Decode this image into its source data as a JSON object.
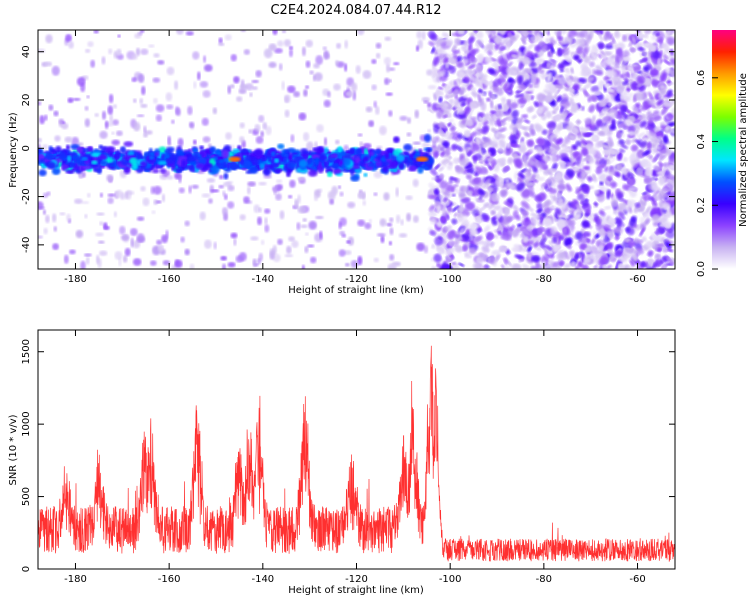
{
  "title": "C2E4.2024.084.07.44.R12",
  "chart_data": [
    {
      "type": "heatmap",
      "xlabel": "Height of straight line (km)",
      "ylabel": "Frequency (Hz)",
      "xlim": [
        -188,
        -52
      ],
      "ylim": [
        -50,
        49
      ],
      "x_ticks": [
        -180,
        -160,
        -140,
        -120,
        -100,
        -80,
        -60
      ],
      "x_tick_labels": [
        "-180",
        "-160",
        "-140",
        "-120",
        "-100",
        "-80",
        "-60"
      ],
      "y_ticks": [
        40,
        20,
        0,
        -20,
        -40
      ],
      "y_tick_labels": [
        "40",
        "20",
        "0",
        "-20",
        "-40"
      ],
      "signal_band": {
        "x_range": [
          -188,
          -104
        ],
        "frequency_center": -5,
        "frequency_width": 8,
        "peak_x": [
          -146,
          -106
        ]
      },
      "noise_region_x": [
        -104,
        -52
      ],
      "colorbar": {
        "label": "Normalized spectral amplitude",
        "range": [
          0,
          0.75
        ],
        "ticks": [
          0.0,
          0.2,
          0.4,
          0.6
        ],
        "tick_labels": [
          "0.0",
          "0.2",
          "0.4",
          "0.6"
        ],
        "colors": [
          "#ffffff",
          "#c8b2f2",
          "#8c42ff",
          "#3800ff",
          "#0050ff",
          "#00e6ff",
          "#00ff88",
          "#7cff00",
          "#ffff00",
          "#ff9a00",
          "#ff2000",
          "#ff0080"
        ]
      },
      "grid": false
    },
    {
      "type": "line",
      "xlabel": "Height of straight line (km)",
      "ylabel": "SNR (10 * v/v)",
      "xlim": [
        -188,
        -52
      ],
      "ylim": [
        0,
        1650
      ],
      "x_ticks": [
        -180,
        -160,
        -140,
        -120,
        -100,
        -80,
        -60
      ],
      "x_tick_labels": [
        "-180",
        "-160",
        "-140",
        "-120",
        "-100",
        "-80",
        "-60"
      ],
      "y_ticks": [
        0,
        500,
        1000,
        1500
      ],
      "y_tick_labels": [
        "0",
        "500",
        "1000",
        "1500"
      ],
      "color": "#ff3030",
      "baseline_signal": {
        "x_range": [
          -188,
          -104
        ],
        "typical": 300
      },
      "baseline_noise": {
        "x_range": [
          -104,
          -52
        ],
        "typical": 150
      },
      "peaks": [
        {
          "x": -182,
          "y": 700
        },
        {
          "x": -175,
          "y": 780
        },
        {
          "x": -165,
          "y": 1110
        },
        {
          "x": -164,
          "y": 1050
        },
        {
          "x": -154,
          "y": 1070
        },
        {
          "x": -145,
          "y": 880
        },
        {
          "x": -143,
          "y": 960
        },
        {
          "x": -141,
          "y": 1170
        },
        {
          "x": -131,
          "y": 1140
        },
        {
          "x": -121,
          "y": 760
        },
        {
          "x": -110,
          "y": 880
        },
        {
          "x": -108,
          "y": 1190
        },
        {
          "x": -104,
          "y": 1640
        },
        {
          "x": -103,
          "y": 1430
        }
      ],
      "grid": false
    }
  ]
}
